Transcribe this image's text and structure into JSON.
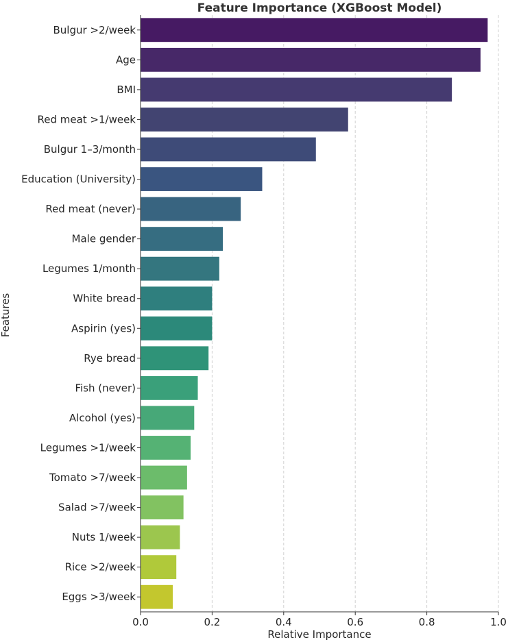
{
  "chart_data": {
    "type": "bar",
    "orientation": "horizontal",
    "title": "Feature Importance (XGBoost Model)",
    "xlabel": "Relative Importance",
    "ylabel": "Features",
    "xlim": [
      0,
      1.0
    ],
    "xticks": [
      "0.0",
      "0.2",
      "0.4",
      "0.6",
      "0.8",
      "1.0"
    ],
    "grid": "x-axis, dashed",
    "colormap": "viridis",
    "categories": [
      "Bulgur >2/week",
      "Age",
      "BMI",
      "Red meat >1/week",
      "Bulgur 1–3/month",
      "Education (University)",
      "Red meat (never)",
      "Male gender",
      "Legumes 1/month",
      "White bread",
      "Aspirin (yes)",
      "Rye bread",
      "Fish (never)",
      "Alcohol (yes)",
      "Legumes >1/week",
      "Tomato >7/week",
      "Salad >7/week",
      "Nuts 1/week",
      "Rice >2/week",
      "Eggs >3/week"
    ],
    "values": [
      0.97,
      0.95,
      0.87,
      0.58,
      0.49,
      0.34,
      0.28,
      0.23,
      0.22,
      0.2,
      0.2,
      0.19,
      0.16,
      0.15,
      0.14,
      0.13,
      0.12,
      0.11,
      0.1,
      0.09
    ],
    "colors": [
      "#461a63",
      "#472868",
      "#453a70",
      "#424471",
      "#3e4b78",
      "#3a5580",
      "#386480",
      "#366d81",
      "#34767f",
      "#2f7f7e",
      "#2c897a",
      "#2f9378",
      "#3aa07a",
      "#47a878",
      "#55b274",
      "#6cbc6b",
      "#82c261",
      "#9cc64e",
      "#b0c93a",
      "#c3c72e"
    ]
  }
}
